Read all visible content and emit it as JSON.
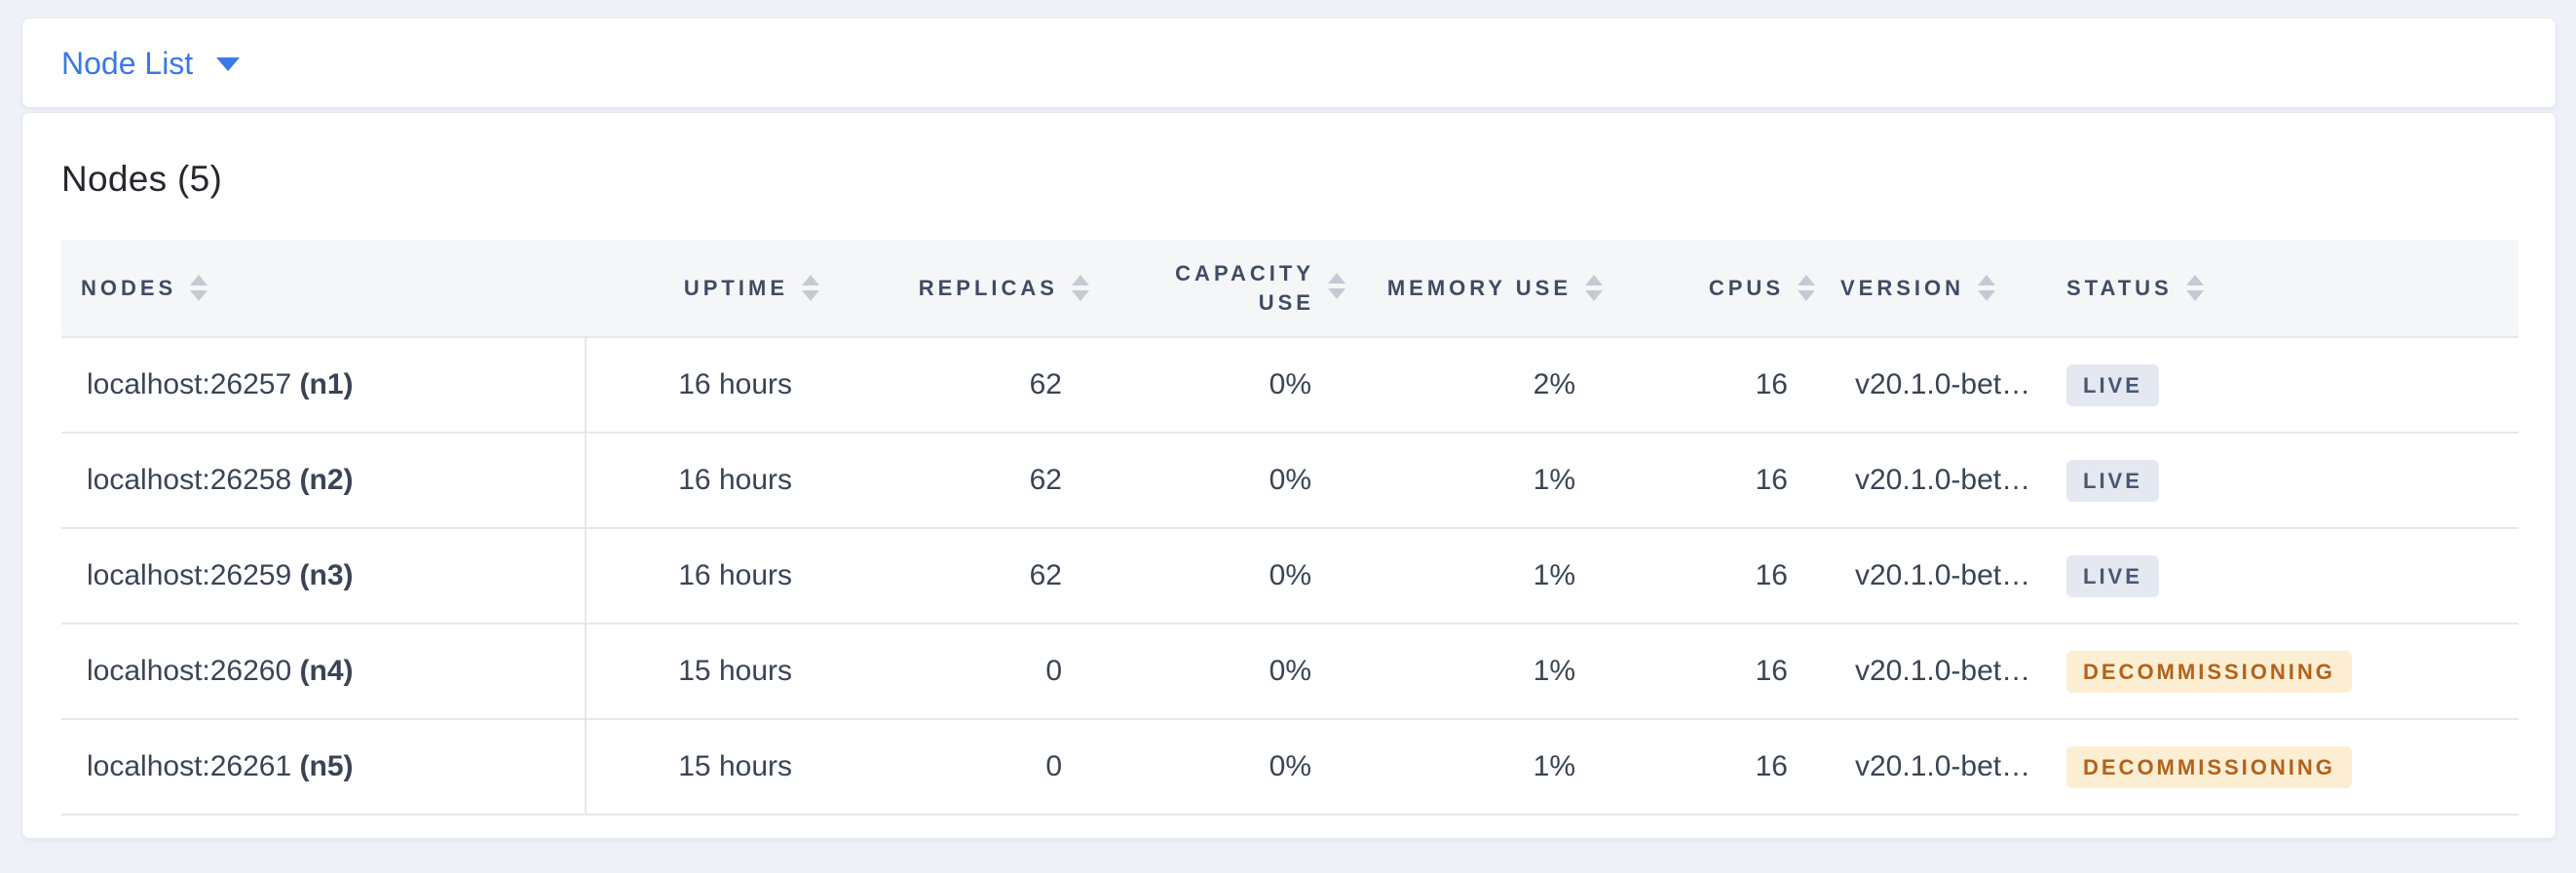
{
  "topbar": {
    "view_selector_label": "Node List"
  },
  "panel": {
    "title": "Nodes (5)"
  },
  "table": {
    "columns": [
      {
        "label": "NODES"
      },
      {
        "label": "UPTIME"
      },
      {
        "label": "REPLICAS"
      },
      {
        "label": "CAPACITY USE"
      },
      {
        "label": "MEMORY USE"
      },
      {
        "label": "CPUS"
      },
      {
        "label": "VERSION"
      },
      {
        "label": "STATUS"
      }
    ],
    "rows": [
      {
        "address": "localhost:26257",
        "node_id": "(n1)",
        "uptime": "16 hours",
        "replicas": "62",
        "capacity_use": "0%",
        "memory_use": "2%",
        "cpus": "16",
        "version": "v20.1.0-bet…",
        "status_label": "LIVE",
        "status_type": "live"
      },
      {
        "address": "localhost:26258",
        "node_id": "(n2)",
        "uptime": "16 hours",
        "replicas": "62",
        "capacity_use": "0%",
        "memory_use": "1%",
        "cpus": "16",
        "version": "v20.1.0-bet…",
        "status_label": "LIVE",
        "status_type": "live"
      },
      {
        "address": "localhost:26259",
        "node_id": "(n3)",
        "uptime": "16 hours",
        "replicas": "62",
        "capacity_use": "0%",
        "memory_use": "1%",
        "cpus": "16",
        "version": "v20.1.0-bet…",
        "status_label": "LIVE",
        "status_type": "live"
      },
      {
        "address": "localhost:26260",
        "node_id": "(n4)",
        "uptime": "15 hours",
        "replicas": "0",
        "capacity_use": "0%",
        "memory_use": "1%",
        "cpus": "16",
        "version": "v20.1.0-bet…",
        "status_label": "DECOMMISSIONING",
        "status_type": "decommissioning"
      },
      {
        "address": "localhost:26261",
        "node_id": "(n5)",
        "uptime": "15 hours",
        "replicas": "0",
        "capacity_use": "0%",
        "memory_use": "1%",
        "cpus": "16",
        "version": "v20.1.0-bet…",
        "status_label": "DECOMMISSIONING",
        "status_type": "decommissioning"
      }
    ]
  },
  "colors": {
    "accent_blue": "#3a78e8",
    "header_text": "#3f4c63",
    "cell_text": "#394455",
    "sort_icon": "#c4cad4",
    "live_badge_bg": "#e4e8f0",
    "live_badge_text": "#475872",
    "decommissioning_badge_bg": "#fbeed2",
    "decommissioning_badge_text": "#b2621c"
  }
}
